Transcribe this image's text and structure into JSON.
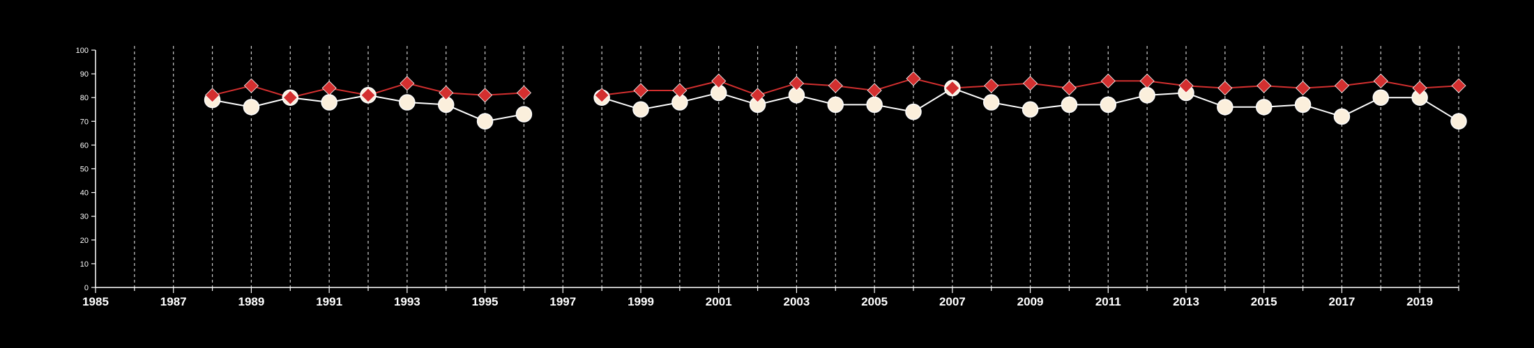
{
  "chart_data": {
    "type": "line",
    "title": "",
    "xlabel": "",
    "ylabel": "",
    "xlim": [
      1985,
      2020
    ],
    "ylim": [
      0,
      100
    ],
    "y_ticks": [
      0,
      10,
      20,
      30,
      40,
      50,
      60,
      70,
      80,
      90,
      100
    ],
    "x_tick_labels": [
      "1985",
      "1987",
      "1989",
      "1991",
      "1993",
      "1995",
      "1997",
      "1999",
      "2001",
      "2003",
      "2005",
      "2007",
      "2009",
      "2011",
      "2013",
      "2015",
      "2017",
      "2019"
    ],
    "vertical_gridlines": "yearly, dashed",
    "legend": "none",
    "series": [
      {
        "marker": "diamond",
        "color": "#d32f2f",
        "x": [
          1988,
          1989,
          1990,
          1991,
          1992,
          1993,
          1994,
          1995,
          1996,
          1998,
          1999,
          2000,
          2001,
          2002,
          2003,
          2004,
          2005,
          2006,
          2007,
          2008,
          2009,
          2010,
          2011,
          2012,
          2013,
          2014,
          2015,
          2016,
          2017,
          2018,
          2019,
          2020
        ],
        "values": [
          81,
          85,
          80,
          84,
          81,
          86,
          82,
          81,
          82,
          81,
          83,
          83,
          87,
          81,
          86,
          85,
          83,
          88,
          84,
          85,
          86,
          84,
          87,
          87,
          85,
          84,
          85,
          84,
          85,
          87,
          84,
          85
        ]
      },
      {
        "marker": "circle",
        "color": "#fbefdc",
        "x": [
          1988,
          1989,
          1990,
          1991,
          1992,
          1993,
          1994,
          1995,
          1996,
          1998,
          1999,
          2000,
          2001,
          2002,
          2003,
          2004,
          2005,
          2006,
          2007,
          2008,
          2009,
          2010,
          2011,
          2012,
          2013,
          2014,
          2015,
          2016,
          2017,
          2018,
          2019,
          2020
        ],
        "values": [
          79,
          76,
          80,
          78,
          81,
          78,
          77,
          70,
          73,
          80,
          75,
          78,
          82,
          77,
          81,
          77,
          77,
          74,
          84,
          78,
          75,
          77,
          77,
          81,
          82,
          76,
          76,
          77,
          72,
          80,
          80,
          70
        ]
      }
    ]
  }
}
